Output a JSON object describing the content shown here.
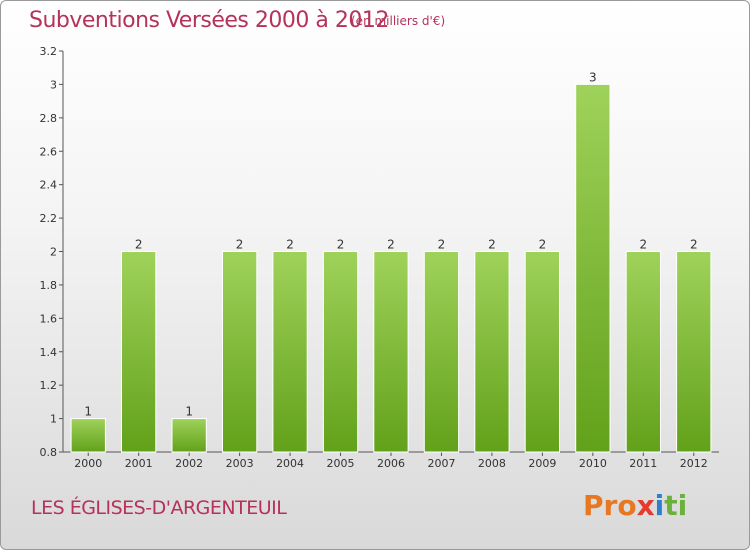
{
  "header": {
    "title": "Subventions Versées 2000 à 2012",
    "unit": "(en milliers d'€)"
  },
  "footer": {
    "commune": "LES ÉGLISES-D'ARGENTEUIL",
    "logo_parts": [
      "Pro",
      "x",
      "i",
      "ti"
    ]
  },
  "colors": {
    "title": "#b5325a",
    "bar_top": "#9fd25a",
    "bar_bottom": "#62a11a",
    "logo": [
      "#e87722",
      "#e63a2e",
      "#2f7fd0",
      "#6ab23d"
    ]
  },
  "chart_data": {
    "type": "bar",
    "title": "Subventions Versées 2000 à 2012",
    "xlabel": "",
    "ylabel": "",
    "categories": [
      "2000",
      "2001",
      "2002",
      "2003",
      "2004",
      "2005",
      "2006",
      "2007",
      "2008",
      "2009",
      "2010",
      "2011",
      "2012"
    ],
    "values": [
      1,
      2,
      1,
      2,
      2,
      2,
      2,
      2,
      2,
      2,
      3,
      2,
      2
    ],
    "data_labels": [
      "1",
      "2",
      "1",
      "2",
      "2",
      "2",
      "2",
      "2",
      "2",
      "2",
      "3",
      "2",
      "2"
    ],
    "ylim": [
      0.8,
      3.2
    ],
    "yticks": [
      0.8,
      1,
      1.2,
      1.4,
      1.6,
      1.8,
      2,
      2.2,
      2.4,
      2.6,
      2.8,
      3,
      3.2
    ],
    "ytick_labels": [
      "0.8",
      "1",
      "1.2",
      "1.4",
      "1.6",
      "1.8",
      "2",
      "2.2",
      "2.4",
      "2.6",
      "2.8",
      "3",
      "3.2"
    ],
    "grid": false,
    "legend": "none"
  }
}
